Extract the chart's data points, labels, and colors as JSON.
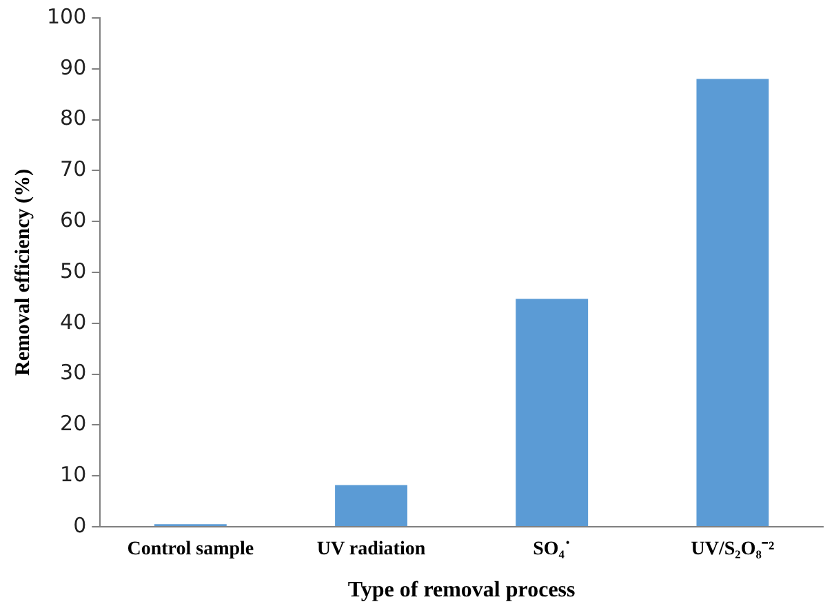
{
  "chart_data": {
    "type": "bar",
    "xlabel": "Type of removal process",
    "ylabel": "Removal efficiency (%)",
    "categories": [
      "Control sample",
      "UV radiation",
      "SO₄˙",
      "UV/S₂O₈⁻²"
    ],
    "values": [
      0.5,
      8.2,
      44.8,
      88
    ],
    "color": "#5b9bd5",
    "ylim": [
      0,
      100
    ],
    "yticks": [
      0,
      10,
      20,
      30,
      40,
      50,
      60,
      70,
      80,
      90,
      100
    ],
    "grid": false,
    "legend": false
  }
}
